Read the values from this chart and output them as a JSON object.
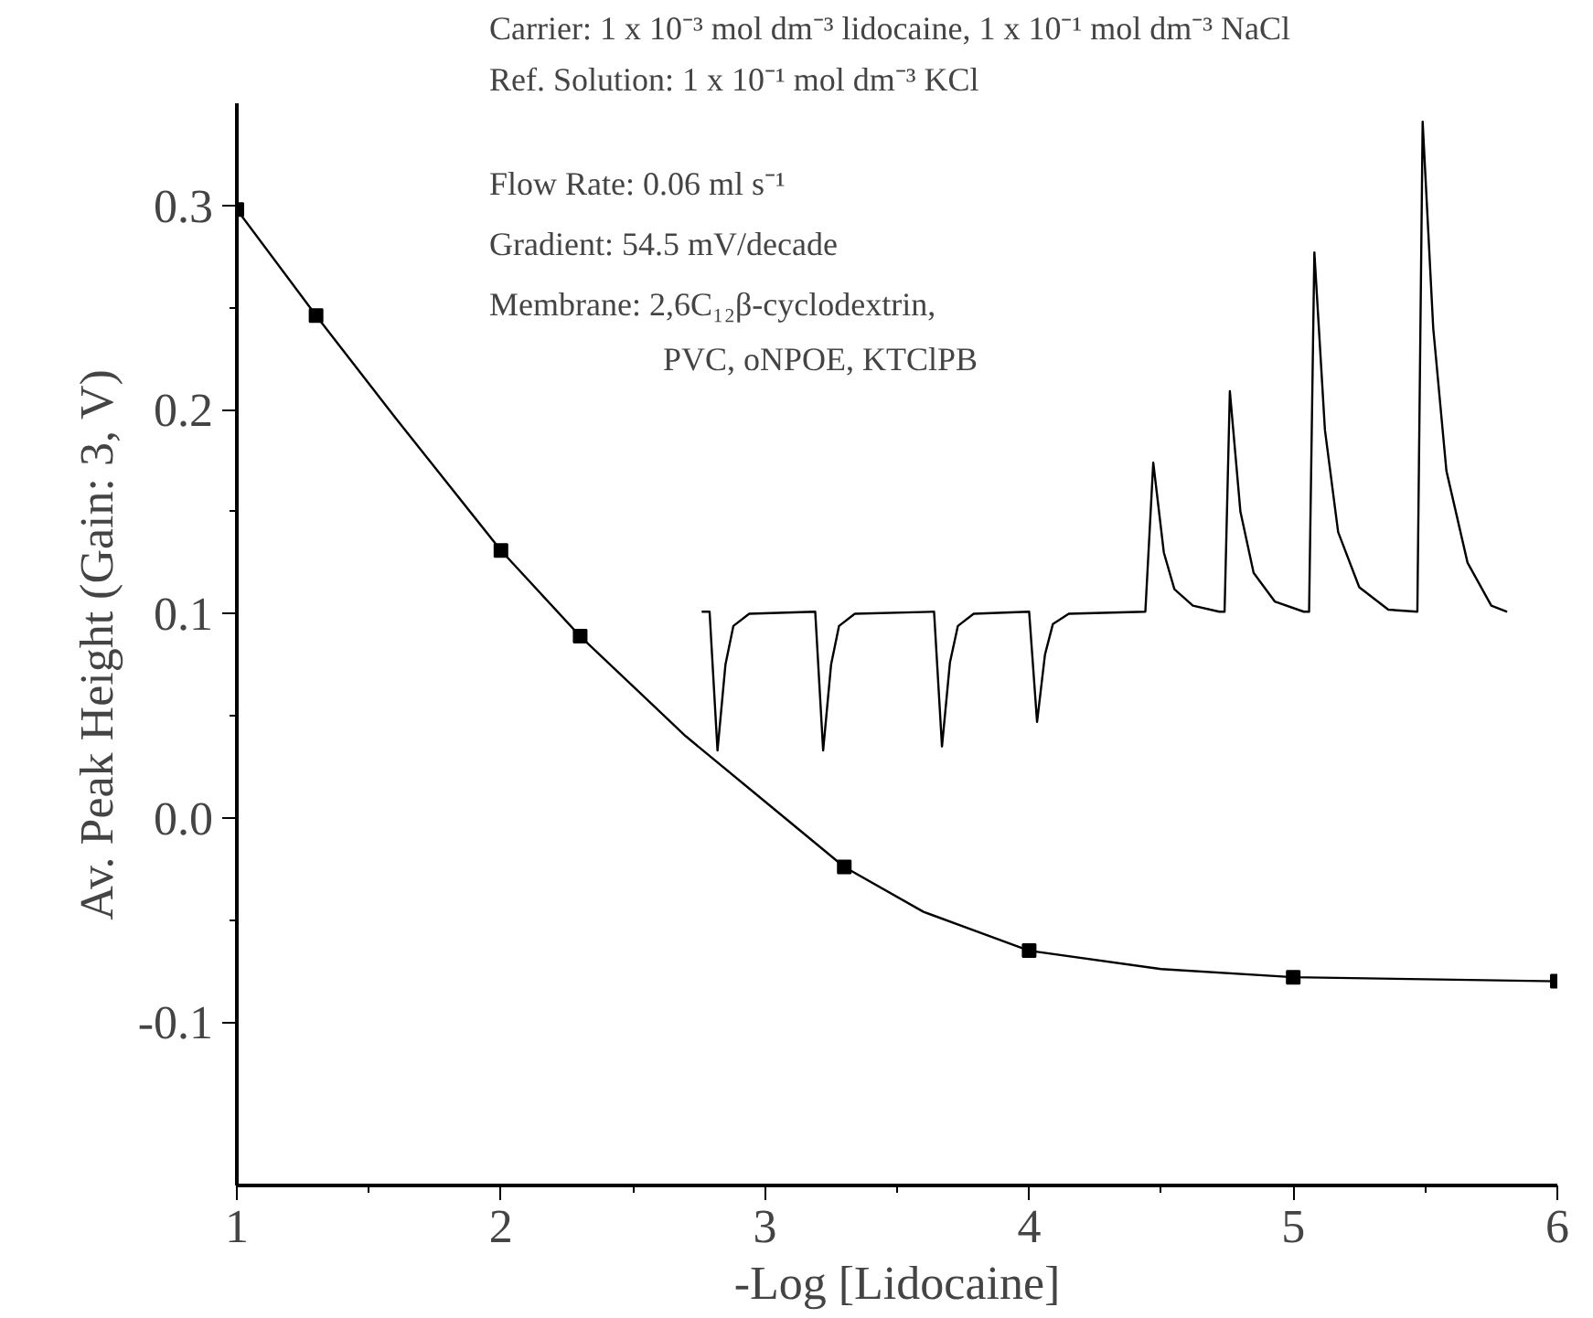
{
  "chart_data": {
    "type": "scatter",
    "xlabel": "-Log [Lidocaine]",
    "ylabel": "Av. Peak Height (Gain: 3, V)",
    "x": [
      1,
      1.3,
      2,
      2.3,
      3.3,
      4,
      5,
      6
    ],
    "series": [
      {
        "color": "#000000",
        "values": [
          0.298,
          0.246,
          0.131,
          0.089,
          -0.024,
          -0.065,
          -0.078,
          -0.08
        ]
      },
      {
        "type": "line",
        "marker": "none",
        "color": "#000000",
        "x": [
          1,
          1.3,
          1.6,
          2,
          2.3,
          2.7,
          3,
          3.3,
          3.6,
          4,
          4.5,
          5,
          5.5,
          6
        ],
        "values": [
          0.298,
          0.246,
          0.196,
          0.131,
          0.089,
          0.04,
          0.008,
          -0.024,
          -0.046,
          -0.065,
          -0.074,
          -0.078,
          -0.079,
          -0.08
        ]
      },
      {
        "type": "line",
        "marker": "none",
        "color": "#000000",
        "x": [
          2.76,
          2.79,
          2.82,
          2.85,
          2.88,
          2.94,
          3.19,
          3.22,
          3.25,
          3.28,
          3.34,
          3.64,
          3.67,
          3.7,
          3.73,
          3.79,
          4.0,
          4.03,
          4.06,
          4.09,
          4.15,
          4.44,
          4.47,
          4.51,
          4.55,
          4.62,
          4.72,
          4.74,
          4.76,
          4.8,
          4.85,
          4.93,
          5.04,
          5.06,
          5.08,
          5.12,
          5.17,
          5.25,
          5.36,
          5.47,
          5.49,
          5.53,
          5.58,
          5.66,
          5.75,
          5.81
        ],
        "values": [
          0.101,
          0.101,
          0.033,
          0.075,
          0.094,
          0.1,
          0.101,
          0.033,
          0.075,
          0.094,
          0.1,
          0.101,
          0.035,
          0.076,
          0.094,
          0.1,
          0.101,
          0.047,
          0.08,
          0.095,
          0.1,
          0.101,
          0.174,
          0.13,
          0.112,
          0.104,
          0.101,
          0.101,
          0.209,
          0.15,
          0.12,
          0.106,
          0.101,
          0.101,
          0.277,
          0.19,
          0.14,
          0.113,
          0.102,
          0.101,
          0.341,
          0.24,
          0.17,
          0.125,
          0.104,
          0.101
        ]
      }
    ],
    "marker": "square",
    "xlim": [
      1,
      6
    ],
    "ylim": [
      -0.18,
      0.35
    ],
    "xticks": [
      1,
      2,
      3,
      4,
      5,
      6
    ],
    "yticks": [
      {
        "value": -0.1,
        "label": "-0.1"
      },
      {
        "value": 0,
        "label": "0.0"
      },
      0.1,
      0.2,
      0.3
    ],
    "grid": false,
    "annotations": [
      "Carrier: 1 x 10⁻³ mol dm⁻³ lidocaine, 1 x 10⁻¹ mol dm⁻³ NaCl",
      "Ref. Solution: 1 x 10⁻¹ mol dm⁻³ KCl",
      "Flow Rate: 0.06 ml s⁻¹",
      "Gradient: 54.5 mV/decade",
      "Membrane: 2,6C₁₂β-cyclodextrin,",
      "PVC, oNPOE, KTClPB"
    ]
  }
}
